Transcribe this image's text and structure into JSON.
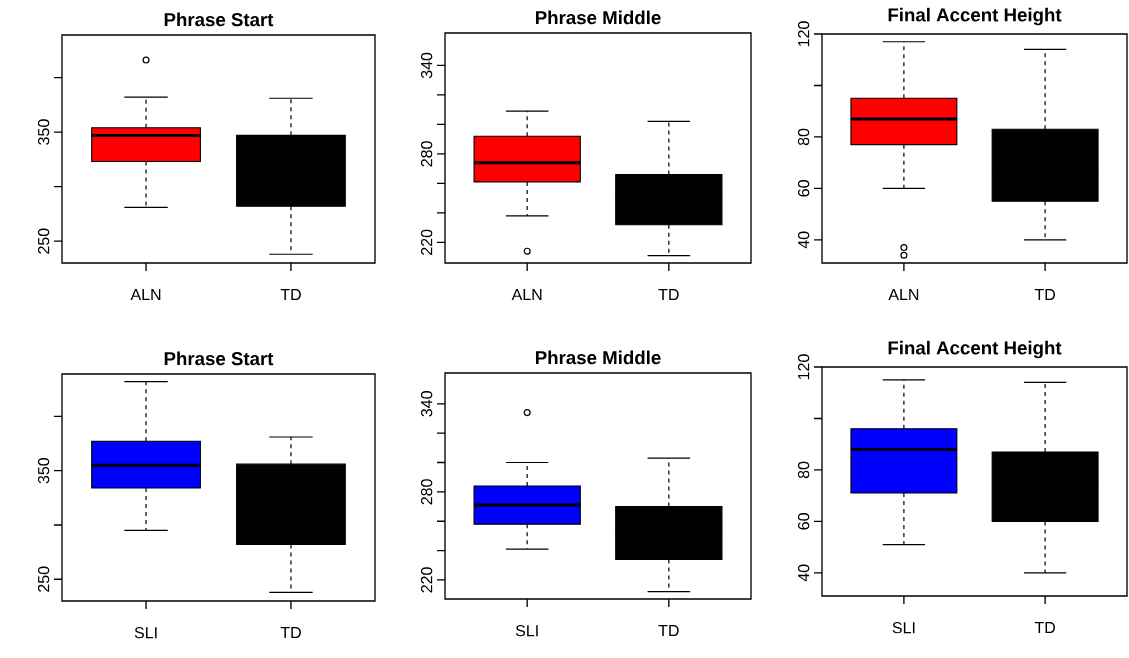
{
  "chart_data": [
    {
      "type": "box",
      "title": "Phrase Start",
      "categories": [
        "ALN",
        "TD"
      ],
      "colors": [
        "#ff0000",
        "#000000"
      ],
      "boxes": [
        {
          "low": 281,
          "q1": 323,
          "median": 347,
          "q3": 354,
          "high": 382,
          "outliers": [
            416
          ]
        },
        {
          "low": 238,
          "q1": 282,
          "median": 314,
          "q3": 347,
          "high": 381
        }
      ],
      "ylim": [
        230,
        439
      ],
      "yticks": [
        250,
        {
          "value": 300,
          "label": null
        },
        350,
        {
          "value": 400,
          "label": null
        }
      ]
    },
    {
      "type": "box",
      "title": "Phrase Middle",
      "categories": [
        "ALN",
        "TD"
      ],
      "colors": [
        "#ff0000",
        "#000000"
      ],
      "boxes": [
        {
          "low": 238,
          "q1": 261,
          "median": 274,
          "q3": 292,
          "high": 309,
          "outliers": [
            214
          ]
        },
        {
          "low": 211,
          "q1": 232,
          "median": 253,
          "q3": 266,
          "high": 302
        }
      ],
      "ylim": [
        206,
        362
      ],
      "yticks": [
        220,
        {
          "value": 240,
          "label": null
        },
        {
          "value": 260,
          "label": null
        },
        280,
        {
          "value": 300,
          "label": null
        },
        {
          "value": 320,
          "label": null
        },
        340
      ]
    },
    {
      "type": "box",
      "title": "Final Accent Height",
      "categories": [
        "ALN",
        "TD"
      ],
      "colors": [
        "#ff0000",
        "#000000"
      ],
      "boxes": [
        {
          "low": 60,
          "q1": 77,
          "median": 87,
          "q3": 95,
          "high": 117,
          "outliers": [
            37,
            34
          ]
        },
        {
          "low": 40,
          "q1": 55,
          "median": 66,
          "q3": 83,
          "high": 114
        }
      ],
      "ylim": [
        31,
        120
      ],
      "yticks": [
        40,
        60,
        80,
        {
          "value": 100,
          "label": null
        },
        120
      ]
    },
    {
      "type": "box",
      "title": "Phrase Start",
      "categories": [
        "SLI",
        "TD"
      ],
      "colors": [
        "#0000ff",
        "#000000"
      ],
      "boxes": [
        {
          "low": 295,
          "q1": 334,
          "median": 355,
          "q3": 377,
          "high": 432
        },
        {
          "low": 238,
          "q1": 282,
          "median": 322,
          "q3": 356,
          "high": 381
        }
      ],
      "ylim": [
        230,
        439
      ],
      "yticks": [
        250,
        {
          "value": 300,
          "label": null
        },
        350,
        {
          "value": 400,
          "label": null
        }
      ]
    },
    {
      "type": "box",
      "title": "Phrase Middle",
      "categories": [
        "SLI",
        "TD"
      ],
      "colors": [
        "#0000ff",
        "#000000"
      ],
      "boxes": [
        {
          "low": 241,
          "q1": 258,
          "median": 271,
          "q3": 284,
          "high": 300,
          "outliers": [
            334
          ]
        },
        {
          "low": 212,
          "q1": 234,
          "median": 255,
          "q3": 270,
          "high": 303
        }
      ],
      "ylim": [
        207,
        361
      ],
      "yticks": [
        220,
        {
          "value": 240,
          "label": null
        },
        {
          "value": 260,
          "label": null
        },
        280,
        {
          "value": 300,
          "label": null
        },
        {
          "value": 320,
          "label": null
        },
        340
      ]
    },
    {
      "type": "box",
      "title": "Final Accent Height",
      "categories": [
        "SLI",
        "TD"
      ],
      "colors": [
        "#0000ff",
        "#000000"
      ],
      "boxes": [
        {
          "low": 51,
          "q1": 71,
          "median": 88,
          "q3": 96,
          "high": 115
        },
        {
          "low": 40,
          "q1": 60,
          "median": 76,
          "q3": 87,
          "high": 114
        }
      ],
      "ylim": [
        31,
        120
      ],
      "yticks": [
        40,
        60,
        80,
        {
          "value": 100,
          "label": null
        },
        120
      ]
    }
  ]
}
